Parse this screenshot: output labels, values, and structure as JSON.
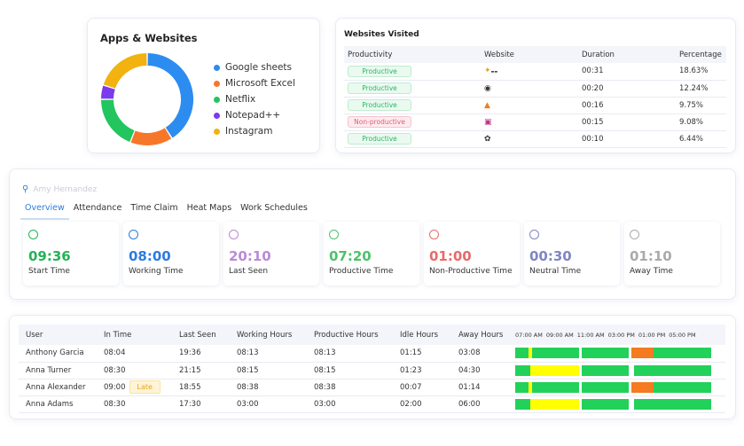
{
  "apps": {
    "title": "Apps & Websites",
    "chart_data": {
      "type": "pie",
      "categories": [
        "Google sheets",
        "Microsoft Excel",
        "Netflix",
        "Notepad++",
        "Instagram"
      ],
      "values": [
        41,
        15,
        19,
        5,
        20
      ],
      "colors": [
        "#2d8cf0",
        "#f7772a",
        "#22c55e",
        "#7c3aed",
        "#f2b20f"
      ]
    }
  },
  "sites": {
    "title": "Websites Visited",
    "columns": [
      "Productivity",
      "Website",
      "Duration",
      "Percentage"
    ],
    "rows": [
      {
        "productivity": "Productive",
        "kind": "prod",
        "icon": "website-logo-icon",
        "duration": "00:31",
        "percentage": "18.63%"
      },
      {
        "productivity": "Productive",
        "kind": "prod",
        "icon": "github-icon",
        "duration": "00:20",
        "percentage": "12.24%"
      },
      {
        "productivity": "Productive",
        "kind": "prod",
        "icon": "gitlab-icon",
        "duration": "00:16",
        "percentage": "9.75%"
      },
      {
        "productivity": "Non-productive",
        "kind": "nonprod",
        "icon": "instagram-icon",
        "duration": "00:15",
        "percentage": "9.08%"
      },
      {
        "productivity": "Productive",
        "kind": "prod",
        "icon": "openai-icon",
        "duration": "00:10",
        "percentage": "6.44%"
      }
    ]
  },
  "overview": {
    "user": "Amy Hernandez",
    "tabs": [
      "Overview",
      "Attendance",
      "Time Claim",
      "Heat Maps",
      "Work Schedules"
    ],
    "active_tab": "Overview",
    "stats": [
      {
        "value": "09:36",
        "label": "Start Time",
        "color": "#22b455"
      },
      {
        "value": "08:00",
        "label": "Working Time",
        "color": "#2d7be0"
      },
      {
        "value": "20:10",
        "label": "Last Seen",
        "color": "#b98ad6"
      },
      {
        "value": "07:20",
        "label": "Productive Time",
        "color": "#4cc26a"
      },
      {
        "value": "01:00",
        "label": "Non-Productive Time",
        "color": "#e86a6a"
      },
      {
        "value": "00:30",
        "label": "Neutral Time",
        "color": "#7f86c4"
      },
      {
        "value": "01:10",
        "label": "Away Time",
        "color": "#aaaaaa"
      }
    ]
  },
  "users": {
    "columns": [
      "User",
      "In Time",
      "Last Seen",
      "Working Hours",
      "Productive Hours",
      "Idle Hours",
      "Away Hours"
    ],
    "timeline_ticks": [
      "07:00 AM",
      "09:00 AM",
      "11:00 AM",
      "03:00 PM",
      "01:00 PM",
      "05:00 PM"
    ],
    "timeline_colors": {
      "productive": "#22d15a",
      "idle": "#ffff00",
      "away": "#f47b20",
      "gap": "#ffffff"
    },
    "rows": [
      {
        "user": "Anthony Garcia",
        "in": "08:04",
        "late": "",
        "last": "19:36",
        "working": "08:13",
        "productive": "08:13",
        "idle": "01:15",
        "away": "03:08",
        "timeline": [
          [
            "productive",
            7
          ],
          [
            "idle",
            1.5
          ],
          [
            "productive",
            24
          ],
          [
            "gap",
            1.5
          ],
          [
            "productive",
            24
          ],
          [
            "gap",
            1.5
          ],
          [
            "away",
            11
          ],
          [
            "productive",
            29.5
          ]
        ]
      },
      {
        "user": "Anna Turner",
        "in": "08:30",
        "late": "",
        "last": "21:15",
        "working": "08:15",
        "productive": "08:15",
        "idle": "01:23",
        "away": "04:30",
        "timeline": [
          [
            "productive",
            7.5
          ],
          [
            "idle",
            25
          ],
          [
            "gap",
            1.5
          ],
          [
            "productive",
            24
          ],
          [
            "gap",
            2.5
          ],
          [
            "productive",
            39.5
          ]
        ]
      },
      {
        "user": "Anna Alexander",
        "in": "09:00",
        "late": "Late",
        "last": "18:55",
        "working": "08:38",
        "productive": "08:38",
        "idle": "00:07",
        "away": "01:14",
        "timeline": [
          [
            "productive",
            7
          ],
          [
            "idle",
            1.5
          ],
          [
            "productive",
            24
          ],
          [
            "gap",
            1.5
          ],
          [
            "productive",
            24
          ],
          [
            "gap",
            1.5
          ],
          [
            "away",
            11
          ],
          [
            "productive",
            29.5
          ]
        ]
      },
      {
        "user": "Anna Adams",
        "in": "08:30",
        "late": "",
        "last": "17:30",
        "working": "03:00",
        "productive": "03:00",
        "idle": "02:00",
        "away": "06:00",
        "timeline": [
          [
            "productive",
            7.5
          ],
          [
            "idle",
            25
          ],
          [
            "gap",
            1.5
          ],
          [
            "productive",
            24
          ],
          [
            "gap",
            2.5
          ],
          [
            "productive",
            39.5
          ]
        ]
      }
    ]
  }
}
